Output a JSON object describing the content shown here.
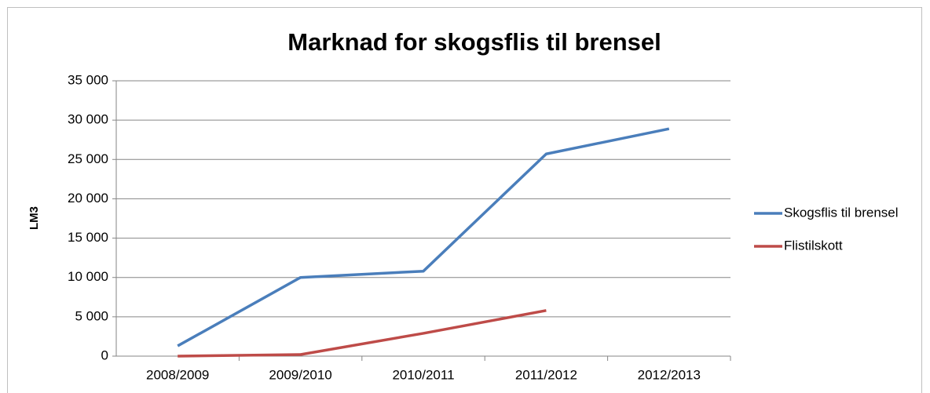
{
  "chart_data": {
    "type": "line",
    "title": "Marknad for skogsflis til brensel",
    "y_label": "LM3",
    "categories": [
      "2008/2009",
      "2009/2010",
      "2010/2011",
      "2011/2012",
      "2012/2013"
    ],
    "series": [
      {
        "name": "Skogsflis til brensel",
        "color": "#4a7ebb",
        "values": [
          1300,
          10000,
          10800,
          25700,
          28900
        ]
      },
      {
        "name": "Flistilskott",
        "color": "#be4b48",
        "values": [
          0,
          200,
          2900,
          5800,
          null
        ]
      }
    ],
    "ylim": [
      0,
      35000
    ],
    "yticks": [
      0,
      {
        "value": 5000,
        "label": "5 000"
      },
      {
        "value": 10000,
        "label": "10 000"
      },
      {
        "value": 15000,
        "label": "15 000"
      },
      {
        "value": 20000,
        "label": "20 000"
      },
      {
        "value": 25000,
        "label": "25 000"
      },
      {
        "value": 30000,
        "label": "30 000"
      },
      {
        "value": 35000,
        "label": "35 000"
      }
    ],
    "grid": true,
    "legend": "right"
  }
}
